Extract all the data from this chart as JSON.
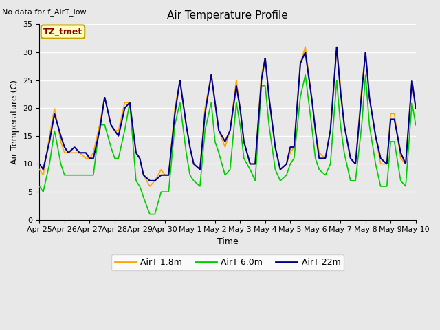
{
  "title": "Air Temperature Profile",
  "xlabel": "Time",
  "ylabel": "Air Temperature (C)",
  "no_data_text": "No data for f_AirT_low",
  "annotation_label": "TZ_tmet",
  "annotation_color": "#8B0000",
  "annotation_bg": "#FFFFC0",
  "annotation_border": "#C8A000",
  "ylim": [
    0,
    35
  ],
  "yticks": [
    0,
    5,
    10,
    15,
    20,
    25,
    30,
    35
  ],
  "background_color": "#E8E8E8",
  "plot_bg": "#E8E8E8",
  "grid_color": "white",
  "colors": {
    "airt_18": "#FFA500",
    "airt_60": "#00CC00",
    "airt_22": "#00008B"
  },
  "legend_labels": [
    "AirT 1.8m",
    "AirT 6.0m",
    "AirT 22m"
  ],
  "xtick_labels": [
    "Apr 25",
    "Apr 26",
    "Apr 27",
    "Apr 28",
    "Apr 29",
    "Apr 30",
    "May 1",
    "May 2",
    "May 3",
    "May 4",
    "May 5",
    "May 6",
    "May 7",
    "May 8",
    "May 9",
    "May 10"
  ],
  "title_fontsize": 11,
  "label_fontsize": 9,
  "tick_fontsize": 8,
  "figwidth": 6.4,
  "figheight": 4.8,
  "dpi": 100
}
